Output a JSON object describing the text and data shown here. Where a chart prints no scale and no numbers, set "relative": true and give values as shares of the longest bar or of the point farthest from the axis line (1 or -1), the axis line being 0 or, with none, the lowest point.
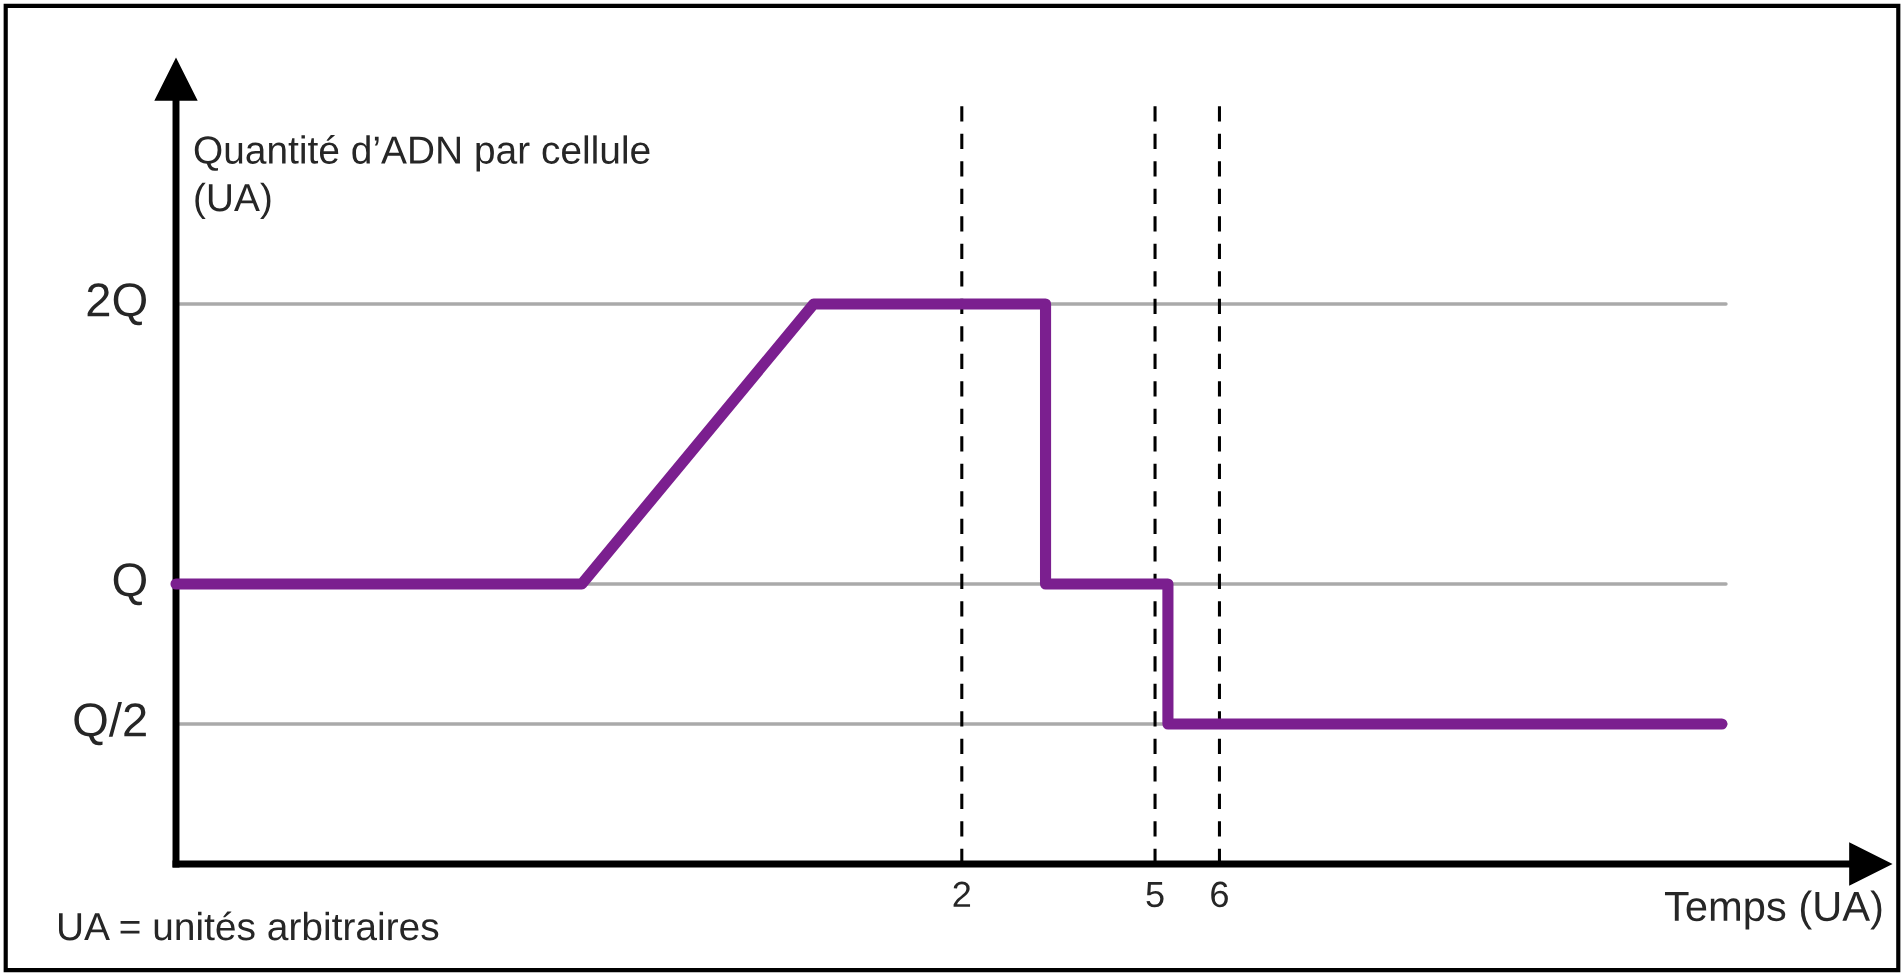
{
  "chart_data": {
    "type": "line",
    "relative": true,
    "xlabel": "Temps (UA)",
    "ylabel": "Quantité d’ADN par cellule\n(UA)",
    "annotations": [
      "UA = unités arbitraires"
    ],
    "series": [
      {
        "color": "#7b1f8f",
        "x": [
          -10.2,
          -3.9,
          -0.3,
          3.3,
          3.3,
          5.2,
          5.2,
          13.8
        ],
        "values": [
          0.5,
          0.5,
          1,
          1,
          0.5,
          0.5,
          0.25,
          0.25
        ]
      }
    ],
    "xlim": [
      -10.2,
      16.1
    ],
    "xticks": [
      2,
      5,
      6
    ],
    "ref_lines": [
      {
        "axis": "y",
        "value": 0.25,
        "label": "Q/2",
        "color": "#aaaaaa",
        "line_style": "solid"
      },
      {
        "axis": "y",
        "value": 0.5,
        "label": "Q",
        "color": "#aaaaaa",
        "line_style": "solid"
      },
      {
        "axis": "y",
        "value": 1,
        "label": "2Q",
        "color": "#aaaaaa",
        "line_style": "solid"
      },
      {
        "axis": "x",
        "value": 2,
        "label": null,
        "color": "#000000",
        "line_style": "dashed"
      },
      {
        "axis": "x",
        "value": 5,
        "label": null,
        "color": "#000000",
        "line_style": "dashed"
      },
      {
        "axis": "x",
        "value": 6,
        "label": null,
        "color": "#000000",
        "line_style": "dashed"
      }
    ],
    "legend": false,
    "marker": "none",
    "line_style": "solid"
  }
}
